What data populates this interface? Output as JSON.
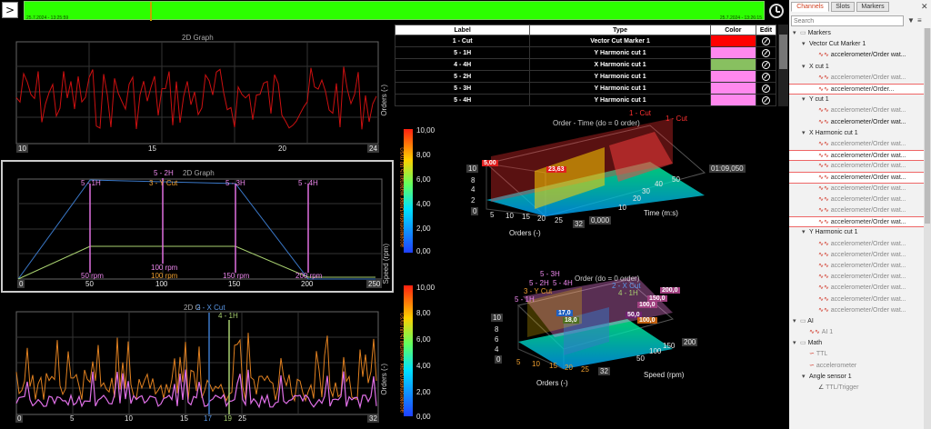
{
  "timeline": {
    "start_time": "25.7.2024 - 13:25:59",
    "end_time": "25.7.2024 - 13:26:15",
    "nav_symbol": ">"
  },
  "graph1": {
    "title": "2D Graph",
    "xticks": [
      "10",
      "15",
      "20",
      "24"
    ],
    "ylabel": "Orders (-)"
  },
  "graph2": {
    "title": "2D Graph",
    "xticks": [
      "0",
      "50",
      "100",
      "150",
      "200",
      "250"
    ],
    "ylabel": "Speed (rpm)",
    "cursor_labels": [
      "5 - 1H",
      "5 - 2H",
      "3 - Y Cut",
      "5 - 3H",
      "5 - 4H"
    ],
    "rpm_labels": [
      "50 rpm",
      "100 rpm",
      "100 rpm",
      "150 rpm",
      "200 rpm"
    ]
  },
  "graph3": {
    "title": "2D G",
    "cursor_labels": [
      "2 - X Cut",
      "4 - 1H"
    ],
    "xticks": [
      "0",
      "5",
      "10",
      "15",
      "17",
      "19",
      "25",
      "32"
    ],
    "ylabel": "Orders (-)"
  },
  "table": {
    "headers": [
      "Label",
      "Type",
      "Color",
      "Edit"
    ],
    "rows": [
      {
        "label": "1 - Cut",
        "type": "Vector Cut Marker 1",
        "color": "#ff0000"
      },
      {
        "label": "5 - 1H",
        "type": "Y Harmonic cut 1",
        "color": "#ff88ee"
      },
      {
        "label": "4 - 4H",
        "type": "X Harmonic cut 1",
        "color": "#88c060"
      },
      {
        "label": "5 - 2H",
        "type": "Y Harmonic cut 1",
        "color": "#ff88ee"
      },
      {
        "label": "5 - 3H",
        "type": "Y Harmonic cut 1",
        "color": "#ff88ee"
      },
      {
        "label": "5 - 4H",
        "type": "Y Harmonic cut 1",
        "color": "#ff88ee"
      }
    ]
  },
  "plot3d_1": {
    "title": "Order - Time (do = 0 order)",
    "labels": [
      "1 - Cut",
      "1 - Cut"
    ],
    "values": [
      "5,00",
      "23,63"
    ],
    "time_value": "01:09,050",
    "zero_value": "0,000",
    "yticks": [
      "10",
      "8",
      "6",
      "4",
      "2",
      "0"
    ],
    "xticks": [
      "0",
      "5",
      "10",
      "15",
      "20",
      "25",
      "32"
    ],
    "zticks": [
      "10",
      "20",
      "30",
      "40",
      "50"
    ],
    "xlabel": "Orders (-)",
    "zlabel": "Time (m:s)",
    "colorbar_ticks": [
      "10,00",
      "8,00",
      "6,00",
      "4,00",
      "2,00",
      "0,00"
    ],
    "colorbar_label": "accelerometer/Order waterfall (5.00 m/s²)"
  },
  "plot3d_2": {
    "title": "Order (do = 0 order)",
    "labels": [
      "5 - 3H",
      "5 - 2H",
      "5 - 4H",
      "3 - Y Cut",
      "5 - 1H",
      "2 - X Cut",
      "4 - 1H"
    ],
    "values": [
      "17,0",
      "18,0",
      "50,0",
      "100,0",
      "100,0",
      "150,0",
      "200,0"
    ],
    "yticks": [
      "10",
      "8",
      "6",
      "4",
      "2",
      "0"
    ],
    "xticks": [
      "0",
      "5",
      "10",
      "15",
      "20",
      "25",
      "32"
    ],
    "zticks": [
      "50",
      "100",
      "150",
      "200"
    ],
    "xlabel": "Orders (-)",
    "zlabel": "Speed (rpm)",
    "colorbar_ticks": [
      "10,00",
      "8,00",
      "6,00",
      "4,00",
      "2,00",
      "0,00"
    ],
    "colorbar_label": "accelerometer/Order waterfall (5.00 m/s²)"
  },
  "panel": {
    "tabs": [
      "Channels",
      "Slots",
      "Markers"
    ],
    "search_placeholder": "Search",
    "tree": [
      {
        "text": "Markers",
        "level": 0,
        "kind": "folder"
      },
      {
        "text": "Vector Cut Marker 1",
        "level": 1,
        "kind": "group"
      },
      {
        "text": "accelerometer/Order wat...",
        "level": 2,
        "kind": "item"
      },
      {
        "text": "X cut 1",
        "level": 1,
        "kind": "group"
      },
      {
        "text": "accelerometer/Order wat...",
        "level": 2,
        "kind": "item",
        "dim": true
      },
      {
        "text": "accelerometer/Order...",
        "level": 2,
        "kind": "item",
        "sel": true
      },
      {
        "text": "Y cut 1",
        "level": 1,
        "kind": "group"
      },
      {
        "text": "accelerometer/Order wat...",
        "level": 2,
        "kind": "item",
        "dim": true
      },
      {
        "text": "accelerometer/Order wat...",
        "level": 2,
        "kind": "item"
      },
      {
        "text": "X Harmonic cut 1",
        "level": 1,
        "kind": "group"
      },
      {
        "text": "accelerometer/Order wat...",
        "level": 2,
        "kind": "item",
        "dim": true
      },
      {
        "text": "accelerometer/Order wat...",
        "level": 2,
        "kind": "item",
        "sel": true
      },
      {
        "text": "accelerometer/Order wat...",
        "level": 2,
        "kind": "item",
        "dim": true
      },
      {
        "text": "accelerometer/Order wat...",
        "level": 2,
        "kind": "item",
        "sel": true
      },
      {
        "text": "accelerometer/Order wat...",
        "level": 2,
        "kind": "item",
        "dim": true
      },
      {
        "text": "accelerometer/Order wat...",
        "level": 2,
        "kind": "item",
        "dim": true
      },
      {
        "text": "accelerometer/Order wat...",
        "level": 2,
        "kind": "item",
        "dim": true
      },
      {
        "text": "accelerometer/Order wat...",
        "level": 2,
        "kind": "item",
        "sel": true
      },
      {
        "text": "Y Harmonic cut 1",
        "level": 1,
        "kind": "group"
      },
      {
        "text": "accelerometer/Order wat...",
        "level": 2,
        "kind": "item",
        "dim": true
      },
      {
        "text": "accelerometer/Order wat...",
        "level": 2,
        "kind": "item",
        "dim": true
      },
      {
        "text": "accelerometer/Order wat...",
        "level": 2,
        "kind": "item",
        "dim": true
      },
      {
        "text": "accelerometer/Order wat...",
        "level": 2,
        "kind": "item",
        "dim": true
      },
      {
        "text": "accelerometer/Order wat...",
        "level": 2,
        "kind": "item",
        "dim": true
      },
      {
        "text": "accelerometer/Order wat...",
        "level": 2,
        "kind": "item",
        "dim": true
      },
      {
        "text": "accelerometer/Order wat...",
        "level": 2,
        "kind": "item",
        "dim": true
      },
      {
        "text": "AI",
        "level": 0,
        "kind": "folder"
      },
      {
        "text": "AI 1",
        "level": 1,
        "kind": "item",
        "dim": true
      },
      {
        "text": "Math",
        "level": 0,
        "kind": "folder"
      },
      {
        "text": "TTL",
        "level": 1,
        "kind": "math",
        "dim": true
      },
      {
        "text": "accelerometer",
        "level": 1,
        "kind": "math",
        "dim": true
      },
      {
        "text": "Angle sensor 1",
        "level": 1,
        "kind": "group"
      },
      {
        "text": "TTL/Trigger",
        "level": 2,
        "kind": "angle",
        "dim": true
      }
    ]
  }
}
